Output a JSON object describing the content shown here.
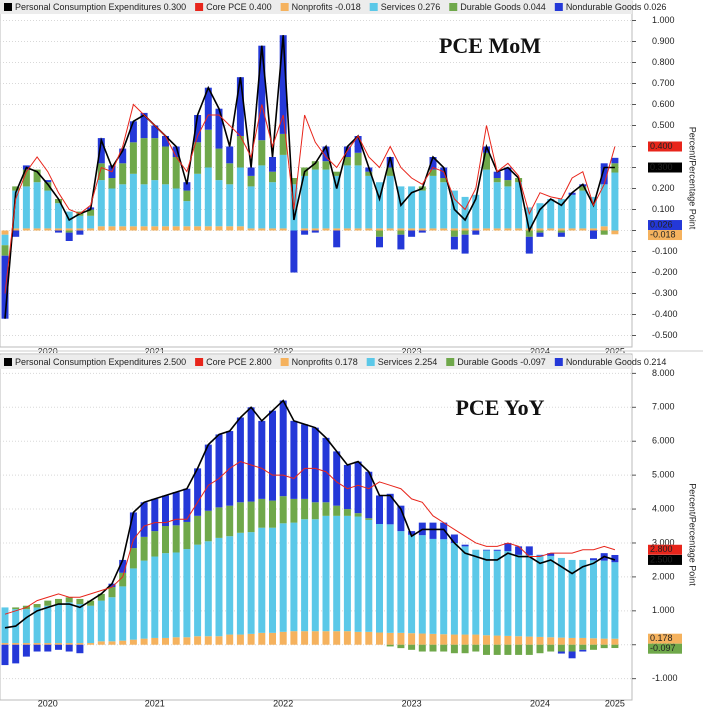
{
  "chart_data": [
    {
      "type": "bar",
      "title": "PCE MoM",
      "y_label": "Percent/Percentage Point",
      "grid": true,
      "categories": [
        null,
        null,
        null,
        null,
        "2020",
        null,
        null,
        null,
        null,
        null,
        null,
        null,
        null,
        null,
        "2021",
        null,
        null,
        null,
        null,
        null,
        null,
        null,
        null,
        null,
        null,
        null,
        "2022",
        null,
        null,
        null,
        null,
        null,
        null,
        null,
        null,
        null,
        null,
        null,
        "2023",
        null,
        null,
        null,
        null,
        null,
        null,
        null,
        null,
        null,
        null,
        null,
        "2024",
        null,
        null,
        null,
        null,
        null,
        null,
        "2025"
      ],
      "ylim": [
        -0.55,
        1.05
      ],
      "yticks": [
        {
          "value": 1,
          "label": "1.000"
        },
        {
          "value": 0.9,
          "label": "0.900"
        },
        {
          "value": 0.8,
          "label": "0.800"
        },
        {
          "value": 0.7,
          "label": "0.700"
        },
        {
          "value": 0.6,
          "label": "0.600"
        },
        {
          "value": 0.5,
          "label": "0.500"
        },
        {
          "value": 0.4,
          "label": "0.400"
        },
        {
          "value": 0.3,
          "label": "0.300"
        },
        {
          "value": 0.2,
          "label": "0.200"
        },
        {
          "value": 0.1,
          "label": "0.100"
        },
        {
          "value": 0,
          "label": "0.000"
        },
        {
          "value": -0.1,
          "label": "-0.100"
        },
        {
          "value": -0.2,
          "label": "-0.200"
        },
        {
          "value": -0.3,
          "label": "-0.300"
        },
        {
          "value": -0.4,
          "label": "-0.400"
        },
        {
          "value": -0.5,
          "label": "-0.500"
        }
      ],
      "series": [
        {
          "name": "Personal Consumption Expenditures 0.300",
          "type": "line",
          "color": "#000000",
          "end_label": "0.300",
          "values": [
            -0.42,
            0.18,
            0.3,
            0.28,
            0.22,
            0.15,
            0.05,
            0.08,
            0.1,
            0.43,
            0.3,
            0.38,
            0.52,
            0.55,
            0.5,
            0.45,
            0.4,
            0.22,
            0.55,
            0.68,
            0.58,
            0.4,
            0.73,
            0.3,
            0.88,
            0.35,
            0.93,
            0.05,
            0.28,
            0.32,
            0.4,
            0.2,
            0.4,
            0.45,
            0.3,
            0.15,
            0.35,
            0.12,
            0.18,
            0.2,
            0.35,
            0.3,
            0.1,
            0.05,
            0.15,
            0.4,
            0.28,
            0.3,
            0.25,
            0.0,
            0.1,
            0.15,
            0.12,
            0.18,
            0.22,
            0.12,
            0.3,
            0.3
          ]
        },
        {
          "name": "Core PCE 0.400",
          "type": "line",
          "color": "#e8251b",
          "end_label": "0.400",
          "values": [
            -0.3,
            0.15,
            0.28,
            0.35,
            0.28,
            0.18,
            0.1,
            0.08,
            0.12,
            0.3,
            0.28,
            0.4,
            0.6,
            0.55,
            0.5,
            0.45,
            0.35,
            0.28,
            0.45,
            0.55,
            0.55,
            0.5,
            0.45,
            0.35,
            0.6,
            0.4,
            0.55,
            0.1,
            0.55,
            0.42,
            0.35,
            0.3,
            0.38,
            0.45,
            0.35,
            0.3,
            0.4,
            0.3,
            0.25,
            0.22,
            0.3,
            0.28,
            0.15,
            0.1,
            0.2,
            0.5,
            0.28,
            0.32,
            0.26,
            0.08,
            0.18,
            0.16,
            0.15,
            0.25,
            0.28,
            0.12,
            0.22,
            0.4
          ]
        },
        {
          "name": "Nonprofits -0.018",
          "type": "bar",
          "color": "#f5b25e",
          "end_label": "-0.018",
          "values": [
            -0.02,
            0.01,
            0.01,
            0.01,
            0.01,
            0.01,
            0.01,
            0.01,
            0.01,
            0.02,
            0.02,
            0.02,
            0.02,
            0.02,
            0.02,
            0.02,
            0.02,
            0.02,
            0.02,
            0.02,
            0.02,
            0.02,
            0.02,
            0.01,
            0.01,
            0.01,
            0.01,
            0.0,
            0.01,
            0.01,
            0.01,
            0.01,
            0.01,
            0.01,
            0.01,
            0.01,
            0.01,
            0.01,
            0.01,
            0.01,
            0.01,
            0.01,
            0.01,
            0.01,
            0.01,
            0.01,
            0.01,
            0.01,
            0.01,
            0.01,
            0.01,
            0.01,
            0.01,
            0.01,
            0.01,
            0.01,
            0.02,
            -0.018
          ]
        },
        {
          "name": "Services 0.276",
          "type": "bar",
          "color": "#5bc8e8",
          "values": [
            -0.05,
            0.18,
            0.2,
            0.22,
            0.18,
            0.12,
            0.08,
            0.06,
            0.06,
            0.22,
            0.18,
            0.2,
            0.25,
            0.2,
            0.22,
            0.2,
            0.18,
            0.12,
            0.25,
            0.28,
            0.22,
            0.2,
            0.28,
            0.2,
            0.3,
            0.22,
            0.35,
            0.22,
            0.25,
            0.28,
            0.28,
            0.25,
            0.3,
            0.3,
            0.25,
            0.22,
            0.25,
            0.2,
            0.2,
            0.18,
            0.25,
            0.22,
            0.18,
            0.15,
            0.16,
            0.28,
            0.22,
            0.2,
            0.22,
            0.1,
            0.12,
            0.14,
            0.14,
            0.16,
            0.18,
            0.15,
            0.2,
            0.276
          ]
        },
        {
          "name": "Durable Goods 0.044",
          "type": "bar",
          "color": "#6fa84a",
          "values": [
            -0.05,
            0.02,
            0.08,
            0.06,
            0.04,
            0.02,
            -0.01,
            0.02,
            0.03,
            0.08,
            0.05,
            0.1,
            0.15,
            0.22,
            0.2,
            0.18,
            0.15,
            0.05,
            0.15,
            0.18,
            0.15,
            0.1,
            0.15,
            0.05,
            0.12,
            0.05,
            0.1,
            0.03,
            0.04,
            0.04,
            0.04,
            0.02,
            0.04,
            0.06,
            0.02,
            -0.03,
            0.04,
            -0.02,
            0.0,
            0.02,
            0.03,
            0.02,
            -0.03,
            -0.02,
            0.0,
            0.08,
            0.02,
            0.03,
            0.02,
            -0.03,
            -0.01,
            0.0,
            -0.01,
            0.0,
            0.02,
            0.0,
            -0.02,
            0.044
          ]
        },
        {
          "name": "Nondurable Goods 0.026",
          "type": "bar",
          "color": "#2438d8",
          "end_label": "0.026",
          "values": [
            -0.3,
            -0.03,
            0.02,
            0.0,
            0.01,
            -0.01,
            -0.04,
            -0.02,
            0.01,
            0.12,
            0.06,
            0.07,
            0.1,
            0.12,
            0.06,
            0.05,
            0.05,
            0.04,
            0.13,
            0.2,
            0.19,
            0.08,
            0.28,
            0.04,
            0.45,
            0.07,
            0.47,
            -0.2,
            -0.02,
            -0.01,
            0.07,
            -0.08,
            0.05,
            0.08,
            0.02,
            -0.05,
            0.05,
            -0.07,
            -0.03,
            -0.01,
            0.06,
            0.05,
            -0.06,
            -0.09,
            -0.02,
            0.03,
            0.03,
            0.06,
            0.0,
            -0.08,
            -0.02,
            0.0,
            -0.02,
            0.01,
            0.01,
            -0.04,
            0.1,
            0.026
          ]
        }
      ]
    },
    {
      "type": "bar",
      "title": "PCE YoY",
      "y_label": "Percent/Percentage Point",
      "grid": true,
      "categories": [
        null,
        null,
        null,
        null,
        "2020",
        null,
        null,
        null,
        null,
        null,
        null,
        null,
        null,
        null,
        "2021",
        null,
        null,
        null,
        null,
        null,
        null,
        null,
        null,
        null,
        null,
        null,
        "2022",
        null,
        null,
        null,
        null,
        null,
        null,
        null,
        null,
        null,
        null,
        null,
        "2023",
        null,
        null,
        null,
        null,
        null,
        null,
        null,
        null,
        null,
        null,
        null,
        "2024",
        null,
        null,
        null,
        null,
        null,
        null,
        "2025"
      ],
      "ylim": [
        -1.6,
        8.1
      ],
      "yticks": [
        {
          "value": 8,
          "label": "8.000"
        },
        {
          "value": 7,
          "label": "7.000"
        },
        {
          "value": 6,
          "label": "6.000"
        },
        {
          "value": 5,
          "label": "5.000"
        },
        {
          "value": 4,
          "label": "4.000"
        },
        {
          "value": 3,
          "label": "3.000"
        },
        {
          "value": 2,
          "label": "2.000"
        },
        {
          "value": 1,
          "label": "1.000"
        },
        {
          "value": 0,
          "label": "0.000"
        },
        {
          "value": -1,
          "label": "-1.000"
        }
      ],
      "series": [
        {
          "name": "Personal Consumption Expenditures 2.500",
          "type": "line",
          "color": "#000000",
          "end_label": "2.500",
          "values": [
            0.5,
            0.55,
            0.8,
            1.0,
            1.1,
            1.2,
            1.2,
            1.1,
            1.3,
            1.5,
            1.8,
            2.5,
            3.9,
            4.2,
            4.3,
            4.4,
            4.5,
            4.6,
            5.2,
            5.9,
            6.2,
            6.3,
            6.7,
            7.0,
            6.6,
            6.9,
            7.2,
            6.6,
            6.5,
            6.4,
            6.1,
            5.7,
            5.3,
            5.4,
            5.1,
            4.4,
            4.4,
            4.0,
            3.2,
            3.4,
            3.4,
            3.4,
            3.0,
            2.7,
            2.6,
            2.5,
            2.5,
            2.7,
            2.6,
            2.6,
            2.4,
            2.5,
            2.3,
            2.1,
            2.3,
            2.4,
            2.6,
            2.5
          ]
        },
        {
          "name": "Core PCE 2.800",
          "type": "line",
          "color": "#e8251b",
          "end_label": "2.800",
          "values": [
            0.9,
            1.0,
            1.1,
            1.3,
            1.4,
            1.5,
            1.4,
            1.4,
            1.5,
            1.6,
            1.7,
            2.0,
            3.1,
            3.5,
            3.6,
            3.6,
            3.7,
            3.7,
            4.2,
            4.7,
            4.9,
            5.2,
            5.4,
            5.3,
            5.2,
            5.0,
            5.0,
            4.9,
            5.2,
            5.2,
            5.1,
            4.8,
            4.6,
            4.7,
            4.6,
            4.8,
            4.7,
            4.6,
            4.3,
            4.2,
            3.8,
            3.6,
            3.4,
            3.2,
            3.0,
            2.9,
            2.9,
            3.0,
            2.9,
            2.6,
            2.6,
            2.7,
            2.7,
            2.7,
            2.8,
            2.8,
            2.9,
            2.8
          ]
        },
        {
          "name": "Nonprofits 0.178",
          "type": "bar",
          "color": "#f5b25e",
          "end_label": "0.178",
          "values": [
            0.05,
            0.05,
            0.05,
            0.05,
            0.05,
            0.05,
            0.05,
            0.05,
            0.05,
            0.1,
            0.1,
            0.12,
            0.15,
            0.18,
            0.2,
            0.2,
            0.22,
            0.22,
            0.25,
            0.25,
            0.25,
            0.3,
            0.3,
            0.32,
            0.35,
            0.35,
            0.38,
            0.4,
            0.4,
            0.4,
            0.4,
            0.4,
            0.4,
            0.38,
            0.38,
            0.36,
            0.35,
            0.35,
            0.34,
            0.33,
            0.32,
            0.31,
            0.3,
            0.3,
            0.3,
            0.28,
            0.27,
            0.26,
            0.25,
            0.24,
            0.23,
            0.22,
            0.21,
            0.2,
            0.2,
            0.19,
            0.18,
            0.178
          ]
        },
        {
          "name": "Services 2.254",
          "type": "bar",
          "color": "#5bc8e8",
          "values": [
            1.05,
            1.0,
            1.0,
            1.05,
            1.1,
            1.15,
            1.2,
            1.15,
            1.1,
            1.2,
            1.3,
            1.6,
            2.1,
            2.3,
            2.4,
            2.5,
            2.5,
            2.6,
            2.7,
            2.8,
            2.9,
            2.9,
            3.0,
            3.0,
            3.1,
            3.1,
            3.2,
            3.2,
            3.3,
            3.3,
            3.4,
            3.4,
            3.4,
            3.4,
            3.3,
            3.2,
            3.2,
            3.0,
            2.9,
            2.9,
            2.8,
            2.8,
            2.7,
            2.6,
            2.5,
            2.5,
            2.5,
            2.5,
            2.4,
            2.4,
            2.4,
            2.4,
            2.35,
            2.3,
            2.3,
            2.3,
            2.3,
            2.254
          ]
        },
        {
          "name": "Durable Goods -0.097",
          "type": "bar",
          "color": "#6fa84a",
          "end_label": "-0.097",
          "values": [
            0.0,
            0.05,
            0.1,
            0.1,
            0.15,
            0.15,
            0.15,
            0.15,
            0.15,
            0.2,
            0.3,
            0.4,
            0.6,
            0.7,
            0.75,
            0.8,
            0.8,
            0.8,
            0.85,
            0.9,
            0.9,
            0.9,
            0.9,
            0.9,
            0.85,
            0.8,
            0.8,
            0.7,
            0.6,
            0.5,
            0.4,
            0.3,
            0.2,
            0.1,
            0.05,
            0.0,
            -0.05,
            -0.1,
            -0.15,
            -0.2,
            -0.2,
            -0.2,
            -0.25,
            -0.25,
            -0.2,
            -0.3,
            -0.3,
            -0.3,
            -0.3,
            -0.3,
            -0.25,
            -0.2,
            -0.2,
            -0.2,
            -0.15,
            -0.15,
            -0.1,
            -0.097
          ]
        },
        {
          "name": "Nondurable Goods 0.214",
          "type": "bar",
          "color": "#2438d8",
          "values": [
            -0.6,
            -0.55,
            -0.35,
            -0.2,
            -0.2,
            -0.15,
            -0.2,
            -0.25,
            0.0,
            0.0,
            0.1,
            0.38,
            1.05,
            1.02,
            0.95,
            0.9,
            0.98,
            0.98,
            1.4,
            1.95,
            2.15,
            2.2,
            2.5,
            2.78,
            2.3,
            2.65,
            2.82,
            2.3,
            2.2,
            2.2,
            1.9,
            1.6,
            1.3,
            1.52,
            1.37,
            0.84,
            0.9,
            0.75,
            0.11,
            0.37,
            0.48,
            0.49,
            0.25,
            0.05,
            0.0,
            0.02,
            0.03,
            0.24,
            0.25,
            0.26,
            0.02,
            0.08,
            -0.06,
            -0.2,
            -0.05,
            0.06,
            0.22,
            0.214
          ]
        }
      ]
    }
  ]
}
